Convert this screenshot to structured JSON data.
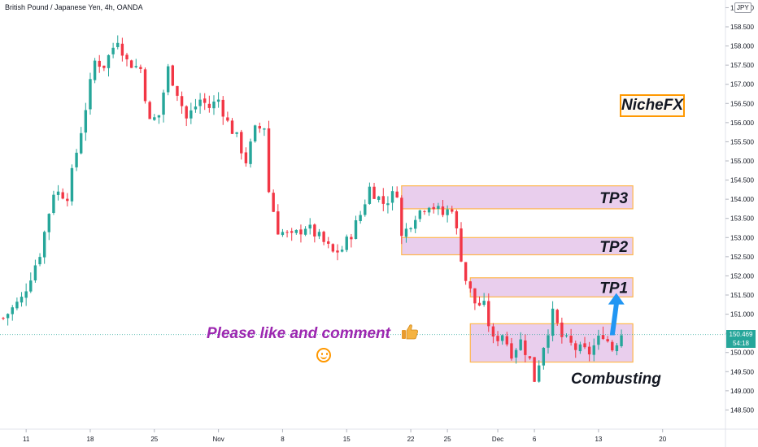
{
  "header": {
    "symbol_title": "British Pound / Japanese Yen, 4h, OANDA",
    "currency_badge": "JPY"
  },
  "price_tag": {
    "price": "150.469",
    "countdown": "54:18"
  },
  "annotations": {
    "brand": "NicheFX",
    "like_text": "Please like and comment",
    "thumbs_icon": "thumbs-up-icon",
    "smiley_icon": "smiley-icon",
    "zone_label": "Combusting",
    "arrow_icon": "blue-up-arrow-icon"
  },
  "colors": {
    "up": "#26a69a",
    "down": "#f23645",
    "zone_fill": "#e1bee7",
    "zone_border": "#ffb74d",
    "brand_border": "#ff9800",
    "like_text": "#9c27b0",
    "arrow": "#2196f3",
    "price_line": "#26a69a"
  },
  "chart_data": {
    "type": "candlestick",
    "title": "British Pound / Japanese Yen, 4h, OANDA",
    "ylim": [
      148.0,
      159.2
    ],
    "y_ticks": [
      "148.500",
      "149.000",
      "149.500",
      "150.000",
      "150.500",
      "151.000",
      "151.500",
      "152.000",
      "152.500",
      "153.000",
      "153.500",
      "154.000",
      "154.500",
      "155.000",
      "155.500",
      "156.000",
      "156.500",
      "157.000",
      "157.500",
      "158.000",
      "158.500",
      "159.000"
    ],
    "x_ticks": [
      "11",
      "18",
      "25",
      "Nov",
      "8",
      "15",
      "22",
      "25",
      "Dec",
      "6",
      "13",
      "20"
    ],
    "x_tick_index": [
      5,
      19,
      33,
      47,
      61,
      75,
      89,
      97,
      108,
      116,
      130,
      144
    ],
    "last_price": 150.469,
    "path": [
      [
        0,
        150.9
      ],
      [
        4,
        151.4
      ],
      [
        8,
        152.6
      ],
      [
        11,
        154.2
      ],
      [
        14,
        154.1
      ],
      [
        17,
        155.8
      ],
      [
        20,
        157.6
      ],
      [
        22,
        157.5
      ],
      [
        25,
        158.2
      ],
      [
        27,
        157.6
      ],
      [
        30,
        157.4
      ],
      [
        32,
        156.0
      ],
      [
        34,
        156.2
      ],
      [
        36,
        157.4
      ],
      [
        38,
        156.8
      ],
      [
        40,
        156.1
      ],
      [
        43,
        156.6
      ],
      [
        45,
        156.4
      ],
      [
        47,
        156.6
      ],
      [
        49,
        156.0
      ],
      [
        51,
        155.6
      ],
      [
        53,
        155.0
      ],
      [
        55,
        155.8
      ],
      [
        57,
        155.9
      ],
      [
        58,
        154.2
      ],
      [
        60,
        153.2
      ],
      [
        63,
        153.0
      ],
      [
        66,
        153.3
      ],
      [
        69,
        153.0
      ],
      [
        72,
        152.6
      ],
      [
        74,
        152.7
      ],
      [
        76,
        153.1
      ],
      [
        78,
        153.6
      ],
      [
        80,
        154.3
      ],
      [
        83,
        153.9
      ],
      [
        86,
        154.2
      ],
      [
        87,
        153.0
      ],
      [
        90,
        153.6
      ],
      [
        93,
        153.9
      ],
      [
        96,
        153.6
      ],
      [
        98,
        153.8
      ],
      [
        100,
        152.5
      ],
      [
        101,
        151.9
      ],
      [
        103,
        151.3
      ],
      [
        105,
        151.2
      ],
      [
        107,
        150.3
      ],
      [
        109,
        150.5
      ],
      [
        111,
        150.0
      ],
      [
        113,
        150.3
      ],
      [
        115,
        149.8
      ],
      [
        116,
        149.3
      ],
      [
        118,
        150.2
      ],
      [
        120,
        151.0
      ],
      [
        122,
        150.4
      ],
      [
        125,
        150.1
      ],
      [
        128,
        150.0
      ],
      [
        131,
        150.5
      ],
      [
        133,
        150.1
      ],
      [
        135,
        150.5
      ]
    ],
    "zones": [
      {
        "label": "TP3",
        "y_top": 154.35,
        "y_bottom": 153.75,
        "x_start": 87
      },
      {
        "label": "TP2",
        "y_top": 153.0,
        "y_bottom": 152.55,
        "x_start": 87
      },
      {
        "label": "TP1",
        "y_top": 151.95,
        "y_bottom": 151.45,
        "x_start": 102
      },
      {
        "label": "Combusting",
        "y_top": 150.75,
        "y_bottom": 149.75,
        "x_start": 102
      }
    ],
    "grid": false
  }
}
